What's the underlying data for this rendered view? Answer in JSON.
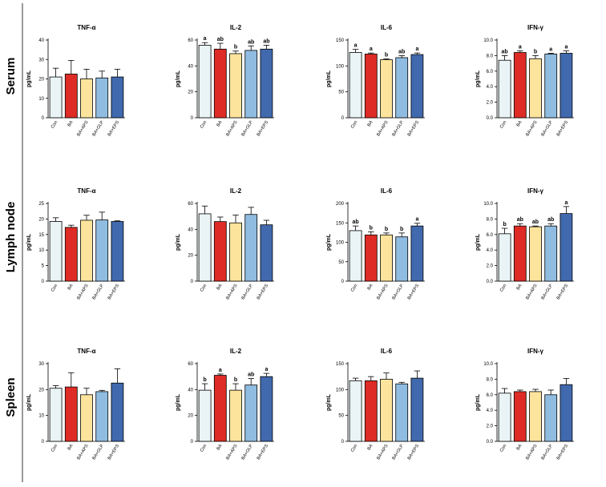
{
  "colors": {
    "Con": "#eaf4f6",
    "BA": "#de2b25",
    "BA+APS": "#fde49c",
    "BA+GLP": "#8fbce0",
    "BA+EPS": "#4169ad"
  },
  "chart_data": [
    {
      "row": "Serum",
      "title": "TNF-α",
      "type": "bar",
      "ylabel": "pg/mL",
      "ylim": [
        0,
        40
      ],
      "yticks": [
        0,
        10,
        20,
        30,
        40
      ],
      "ytick_labels": [
        "0",
        "10",
        "20",
        "30",
        "40"
      ],
      "categories": [
        "Con",
        "BA",
        "BA+APS",
        "BA+GLP",
        "BA+EPS"
      ],
      "values": [
        21,
        22.5,
        20,
        20.5,
        21
      ],
      "errors": [
        4.5,
        7,
        5,
        3.5,
        4
      ],
      "letters": [
        "",
        "",
        "",
        "",
        ""
      ]
    },
    {
      "row": "Serum",
      "title": "IL-2",
      "type": "bar",
      "ylabel": "pg/mL",
      "ylim": [
        0,
        60
      ],
      "yticks": [
        0,
        20,
        40,
        60
      ],
      "ytick_labels": [
        "0",
        "20",
        "40",
        "60"
      ],
      "categories": [
        "Con",
        "BA",
        "BA+APS",
        "BA+GLP",
        "BA+EPS"
      ],
      "values": [
        56,
        53,
        49.5,
        52,
        53
      ],
      "errors": [
        2,
        4.5,
        2,
        3.5,
        3
      ],
      "letters": [
        "a",
        "ab",
        "b",
        "ab",
        "ab"
      ]
    },
    {
      "row": "Serum",
      "title": "IL-6",
      "type": "bar",
      "ylabel": "pg/mL",
      "ylim": [
        0,
        150
      ],
      "yticks": [
        0,
        50,
        100,
        150
      ],
      "ytick_labels": [
        "0",
        "50",
        "100",
        "150"
      ],
      "categories": [
        "Con",
        "BA",
        "BA+APS",
        "BA+GLP",
        "BA+EPS"
      ],
      "values": [
        126,
        123,
        112,
        116,
        122
      ],
      "errors": [
        6,
        2,
        1.5,
        4,
        3
      ],
      "letters": [
        "a",
        "a",
        "b",
        "ab",
        "a"
      ]
    },
    {
      "row": "Serum",
      "title": "IFN-γ",
      "type": "bar",
      "ylabel": "pg/mL",
      "ylim": [
        0,
        10
      ],
      "yticks": [
        0,
        2,
        4,
        6,
        8,
        10
      ],
      "ytick_labels": [
        "0.0",
        "2.0",
        "4.0",
        "6.0",
        "8.0",
        "10.0"
      ],
      "categories": [
        "Con",
        "BA",
        "BA+APS",
        "BA+GLP",
        "BA+EPS"
      ],
      "values": [
        7.4,
        8.4,
        7.6,
        8.2,
        8.3
      ],
      "errors": [
        0.6,
        0.2,
        0.4,
        0.1,
        0.3
      ],
      "letters": [
        "ab",
        "a",
        "b",
        "a",
        "a"
      ]
    },
    {
      "row": "Lymph node",
      "title": "TNF-α",
      "type": "bar",
      "ylabel": "pg/mL",
      "ylim": [
        0,
        25
      ],
      "yticks": [
        0,
        5,
        10,
        15,
        20,
        25
      ],
      "ytick_labels": [
        "0",
        "5",
        "10",
        "15",
        "20",
        "25"
      ],
      "categories": [
        "Con",
        "BA",
        "BA+APS",
        "BA+GLP",
        "BA+EPS"
      ],
      "values": [
        19.2,
        17.3,
        19.6,
        19.7,
        19.2
      ],
      "errors": [
        1.2,
        0.7,
        1.6,
        2.5,
        0.2
      ],
      "letters": [
        "",
        "",
        "",
        "",
        ""
      ]
    },
    {
      "row": "Lymph node",
      "title": "IL-2",
      "type": "bar",
      "ylabel": "pg/mL",
      "ylim": [
        0,
        60
      ],
      "yticks": [
        0,
        20,
        40,
        60
      ],
      "ytick_labels": [
        "0",
        "20",
        "40",
        "60"
      ],
      "categories": [
        "Con",
        "BA",
        "BA+APS",
        "BA+GLP",
        "BA+EPS"
      ],
      "values": [
        52,
        46,
        45,
        51.5,
        43.5
      ],
      "errors": [
        6,
        3.5,
        6,
        5.5,
        3.5
      ],
      "letters": [
        "",
        "",
        "",
        "",
        ""
      ]
    },
    {
      "row": "Lymph node",
      "title": "IL-6",
      "type": "bar",
      "ylabel": "pg/mL",
      "ylim": [
        0,
        200
      ],
      "yticks": [
        0,
        50,
        100,
        150,
        200
      ],
      "ytick_labels": [
        "0",
        "50",
        "100",
        "150",
        "200"
      ],
      "categories": [
        "Con",
        "BA",
        "BA+APS",
        "BA+GLP",
        "BA+EPS"
      ],
      "values": [
        130,
        119,
        119,
        114,
        142
      ],
      "errors": [
        12,
        8,
        5,
        10,
        7
      ],
      "letters": [
        "ab",
        "b",
        "b",
        "b",
        "a"
      ]
    },
    {
      "row": "Lymph node",
      "title": "IFN-γ",
      "type": "bar",
      "ylabel": "pg/mL",
      "ylim": [
        0,
        10
      ],
      "yticks": [
        0,
        2,
        4,
        6,
        8,
        10
      ],
      "ytick_labels": [
        "0.0",
        "2.0",
        "4.0",
        "6.0",
        "8.0",
        "10.0"
      ],
      "categories": [
        "Con",
        "BA",
        "BA+APS",
        "BA+GLP",
        "BA+EPS"
      ],
      "values": [
        6.1,
        7.1,
        7.0,
        7.1,
        8.7
      ],
      "errors": [
        0.7,
        0.3,
        0.1,
        0.3,
        0.9
      ],
      "letters": [
        "b",
        "ab",
        "ab",
        "ab",
        "a"
      ]
    },
    {
      "row": "Spleen",
      "title": "TNF-α",
      "type": "bar",
      "ylabel": "pg/mL",
      "ylim": [
        0,
        30
      ],
      "yticks": [
        0,
        10,
        20,
        30
      ],
      "ytick_labels": [
        "0",
        "10",
        "20",
        "30"
      ],
      "categories": [
        "Con",
        "BA",
        "BA+APS",
        "BA+GLP",
        "BA+EPS"
      ],
      "values": [
        20.5,
        21,
        18,
        19.2,
        22.5
      ],
      "errors": [
        1,
        5.5,
        2.5,
        0.5,
        5.5
      ],
      "letters": [
        "",
        "",
        "",
        "",
        ""
      ]
    },
    {
      "row": "Spleen",
      "title": "IL-2",
      "type": "bar",
      "ylabel": "pg/mL",
      "ylim": [
        0,
        60
      ],
      "yticks": [
        0,
        20,
        40,
        60
      ],
      "ytick_labels": [
        "0",
        "20",
        "40",
        "60"
      ],
      "categories": [
        "Con",
        "BA",
        "BA+APS",
        "BA+GLP",
        "BA+EPS"
      ],
      "values": [
        39.5,
        51,
        39.5,
        43.5,
        50
      ],
      "errors": [
        5,
        1,
        5,
        5,
        2.5
      ],
      "letters": [
        "b",
        "a",
        "b",
        "ab",
        "a"
      ]
    },
    {
      "row": "Spleen",
      "title": "IL-6",
      "type": "bar",
      "ylabel": "pg/mL",
      "ylim": [
        0,
        150
      ],
      "yticks": [
        0,
        50,
        100,
        150
      ],
      "ytick_labels": [
        "0",
        "50",
        "100",
        "150"
      ],
      "categories": [
        "Con",
        "BA",
        "BA+APS",
        "BA+GLP",
        "BA+EPS"
      ],
      "values": [
        117,
        117,
        120,
        111,
        122
      ],
      "errors": [
        5,
        8,
        12,
        3,
        14
      ],
      "letters": [
        "",
        "",
        "",
        "",
        ""
      ]
    },
    {
      "row": "Spleen",
      "title": "IFN-γ",
      "type": "bar",
      "ylabel": "pg/mL",
      "ylim": [
        0,
        10
      ],
      "yticks": [
        0,
        2,
        4,
        6,
        8,
        10
      ],
      "ytick_labels": [
        "0.0",
        "2.0",
        "4.0",
        "6.0",
        "8.0",
        "10.0"
      ],
      "categories": [
        "Con",
        "BA",
        "BA+APS",
        "BA+GLP",
        "BA+EPS"
      ],
      "values": [
        6.2,
        6.4,
        6.4,
        6.0,
        7.3
      ],
      "errors": [
        0.6,
        0.2,
        0.3,
        0.6,
        0.8
      ],
      "letters": [
        "",
        "",
        "",
        "",
        ""
      ]
    }
  ]
}
